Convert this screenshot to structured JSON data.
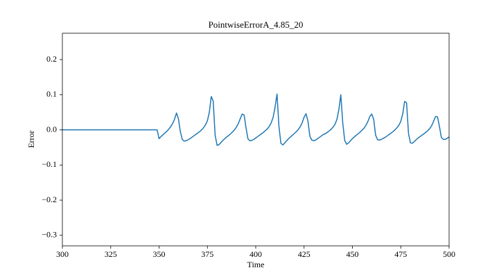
{
  "chart_data": {
    "type": "line",
    "title": "PointwiseErrorA_4.85_20",
    "xlabel": "Time",
    "ylabel": "Error",
    "color": "#1f77b4",
    "xlim": [
      300,
      500
    ],
    "xticks": [
      300,
      325,
      350,
      375,
      400,
      425,
      450,
      475,
      500
    ],
    "ylim": [
      -0.33,
      0.275
    ],
    "yticks": [
      {
        "value": -0.3,
        "label": "−0.3"
      },
      {
        "value": -0.2,
        "label": "−0.2"
      },
      {
        "value": -0.1,
        "label": "−0.1"
      },
      {
        "value": 0,
        "label": "0.0"
      },
      0.1,
      0.2
    ],
    "grid": false,
    "x": [
      300,
      349,
      350,
      351,
      352,
      353,
      354,
      355,
      356,
      357,
      358,
      359,
      360,
      361,
      362,
      363,
      364,
      365,
      366,
      367,
      368,
      369,
      370,
      371,
      372,
      373,
      374,
      375,
      376,
      377,
      378,
      379,
      380,
      381,
      382,
      383,
      384,
      385,
      386,
      387,
      388,
      389,
      390,
      391,
      392,
      393,
      394,
      395,
      396,
      397,
      398,
      399,
      400,
      401,
      402,
      403,
      404,
      405,
      406,
      407,
      408,
      409,
      410,
      411,
      412,
      413,
      414,
      415,
      416,
      417,
      418,
      419,
      420,
      421,
      422,
      423,
      424,
      425,
      426,
      427,
      428,
      429,
      430,
      431,
      432,
      433,
      434,
      435,
      436,
      437,
      438,
      439,
      440,
      441,
      442,
      443,
      444,
      445,
      446,
      447,
      448,
      449,
      450,
      451,
      452,
      453,
      454,
      455,
      456,
      457,
      458,
      459,
      460,
      461,
      462,
      463,
      464,
      465,
      466,
      467,
      468,
      469,
      470,
      471,
      472,
      473,
      474,
      475,
      476,
      477,
      478,
      479,
      480,
      481,
      482,
      483,
      484,
      485,
      486,
      487,
      488,
      489,
      490,
      491,
      492,
      493,
      494,
      495,
      496,
      497,
      498,
      499,
      500
    ],
    "values": [
      0,
      0,
      -0.025,
      -0.019,
      -0.014,
      -0.009,
      -0.004,
      0.002,
      0.009,
      0.018,
      0.03,
      0.048,
      0.032,
      -0.005,
      -0.027,
      -0.032,
      -0.031,
      -0.028,
      -0.025,
      -0.021,
      -0.017,
      -0.013,
      -0.009,
      -0.005,
      0.0,
      0.006,
      0.014,
      0.026,
      0.05,
      0.095,
      0.082,
      -0.015,
      -0.044,
      -0.042,
      -0.036,
      -0.03,
      -0.025,
      -0.02,
      -0.016,
      -0.011,
      -0.006,
      0.0,
      0.008,
      0.018,
      0.032,
      0.045,
      0.042,
      0.005,
      -0.026,
      -0.031,
      -0.03,
      -0.027,
      -0.023,
      -0.019,
      -0.015,
      -0.011,
      -0.007,
      -0.002,
      0.003,
      0.01,
      0.02,
      0.036,
      0.065,
      0.102,
      0.01,
      -0.038,
      -0.043,
      -0.037,
      -0.031,
      -0.025,
      -0.02,
      -0.015,
      -0.01,
      -0.005,
      0.001,
      0.009,
      0.02,
      0.036,
      0.046,
      0.025,
      -0.018,
      -0.029,
      -0.031,
      -0.029,
      -0.025,
      -0.021,
      -0.017,
      -0.013,
      -0.011,
      -0.007,
      -0.003,
      0.002,
      0.008,
      0.016,
      0.03,
      0.058,
      0.1,
      0.02,
      -0.03,
      -0.041,
      -0.037,
      -0.031,
      -0.025,
      -0.02,
      -0.015,
      -0.011,
      -0.006,
      -0.001,
      0.005,
      0.013,
      0.024,
      0.038,
      0.045,
      0.03,
      -0.015,
      -0.028,
      -0.029,
      -0.027,
      -0.024,
      -0.021,
      -0.017,
      -0.013,
      -0.009,
      -0.005,
      0.0,
      0.006,
      0.013,
      0.024,
      0.045,
      0.081,
      0.077,
      -0.01,
      -0.037,
      -0.038,
      -0.033,
      -0.028,
      -0.023,
      -0.019,
      -0.015,
      -0.011,
      -0.007,
      -0.002,
      0.004,
      0.012,
      0.025,
      0.038,
      0.037,
      0.01,
      -0.022,
      -0.027,
      -0.027,
      -0.024,
      -0.02
    ]
  }
}
